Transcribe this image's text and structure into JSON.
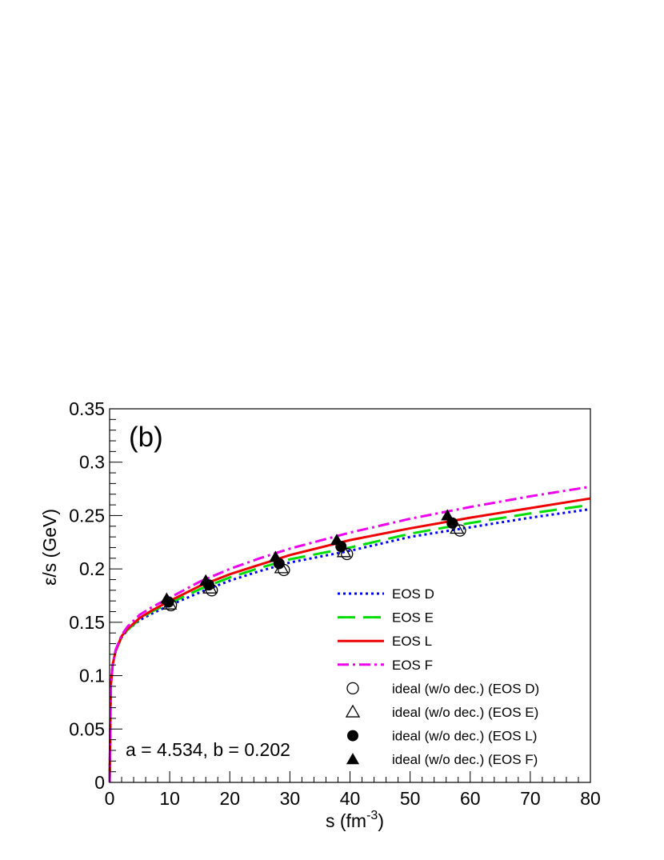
{
  "chart_data": {
    "type": "line",
    "panel_label": "(b)",
    "annotation": "a = 4.534, b = 0.202",
    "xlabel": {
      "main": "s (fm",
      "sup": "-3",
      "tail": ")"
    },
    "ylabel": "ε/s (GeV)",
    "xlim": [
      0,
      80
    ],
    "ylim": [
      0,
      0.35
    ],
    "x_ticks": [
      0,
      10,
      20,
      30,
      40,
      50,
      60,
      70,
      80
    ],
    "x_tick_labels": [
      "0",
      "10",
      "20",
      "30",
      "40",
      "50",
      "60",
      "70",
      "80"
    ],
    "y_ticks": [
      0,
      0.05,
      0.1,
      0.15,
      0.2,
      0.25,
      0.3,
      0.35
    ],
    "y_tick_labels": [
      "0",
      "0.05",
      "0.1",
      "0.15",
      "0.2",
      "0.25",
      "0.3",
      "0.35"
    ],
    "grid": false,
    "legend_position": "lower-right",
    "series": [
      {
        "name": "EOS D",
        "kind": "line",
        "color": "#0000ff",
        "style": "dotted",
        "x": [
          0,
          0.2,
          0.5,
          1,
          2,
          3,
          5,
          7,
          10,
          15,
          20,
          25,
          30,
          40,
          50,
          60,
          70,
          80
        ],
        "y": [
          0,
          0.09,
          0.11,
          0.123,
          0.136,
          0.143,
          0.152,
          0.158,
          0.166,
          0.178,
          0.189,
          0.198,
          0.206,
          0.217,
          0.23,
          0.239,
          0.248,
          0.256
        ]
      },
      {
        "name": "EOS E",
        "kind": "line",
        "color": "#00dd00",
        "style": "dashed",
        "x": [
          0,
          0.2,
          0.5,
          1,
          2,
          3,
          5,
          7,
          10,
          15,
          20,
          25,
          30,
          40,
          50,
          60,
          70,
          80
        ],
        "y": [
          0,
          0.09,
          0.11,
          0.123,
          0.136,
          0.143,
          0.153,
          0.16,
          0.168,
          0.181,
          0.192,
          0.201,
          0.209,
          0.22,
          0.233,
          0.243,
          0.252,
          0.26
        ]
      },
      {
        "name": "EOS L",
        "kind": "line",
        "color": "#ee0000",
        "style": "solid",
        "x": [
          0,
          0.2,
          0.5,
          1,
          2,
          3,
          5,
          7,
          10,
          15,
          20,
          25,
          30,
          40,
          50,
          60,
          70,
          80
        ],
        "y": [
          0,
          0.09,
          0.11,
          0.123,
          0.137,
          0.144,
          0.154,
          0.161,
          0.17,
          0.184,
          0.195,
          0.204,
          0.213,
          0.227,
          0.238,
          0.248,
          0.257,
          0.266
        ]
      },
      {
        "name": "EOS F",
        "kind": "line",
        "color": "#ee00ee",
        "style": "dashdot",
        "x": [
          0,
          0.2,
          0.5,
          1,
          2,
          3,
          5,
          7,
          10,
          15,
          20,
          25,
          30,
          40,
          50,
          60,
          70,
          80
        ],
        "y": [
          0,
          0.09,
          0.11,
          0.124,
          0.138,
          0.146,
          0.157,
          0.164,
          0.173,
          0.188,
          0.2,
          0.21,
          0.219,
          0.234,
          0.247,
          0.258,
          0.268,
          0.277
        ]
      },
      {
        "name": "ideal (w/o dec.) (EOS D)",
        "kind": "marker",
        "marker": "open-circle",
        "x": [
          10.2,
          17.0,
          29.0,
          39.5,
          58.3
        ],
        "y": [
          0.166,
          0.18,
          0.199,
          0.214,
          0.236
        ]
      },
      {
        "name": "ideal (w/o dec.) (EOS E)",
        "kind": "marker",
        "marker": "open-triangle",
        "x": [
          10.0,
          16.7,
          28.6,
          39.0,
          57.8
        ],
        "y": [
          0.167,
          0.182,
          0.201,
          0.216,
          0.238
        ]
      },
      {
        "name": "ideal (w/o dec.) (EOS L)",
        "kind": "marker",
        "marker": "filled-circle",
        "x": [
          9.8,
          16.5,
          28.2,
          38.5,
          57.0
        ],
        "y": [
          0.169,
          0.185,
          0.205,
          0.221,
          0.243
        ]
      },
      {
        "name": "ideal (w/o dec.) (EOS F)",
        "kind": "marker",
        "marker": "filled-triangle",
        "x": [
          9.5,
          16.0,
          27.6,
          37.8,
          56.2
        ],
        "y": [
          0.172,
          0.189,
          0.211,
          0.227,
          0.25
        ]
      }
    ]
  }
}
